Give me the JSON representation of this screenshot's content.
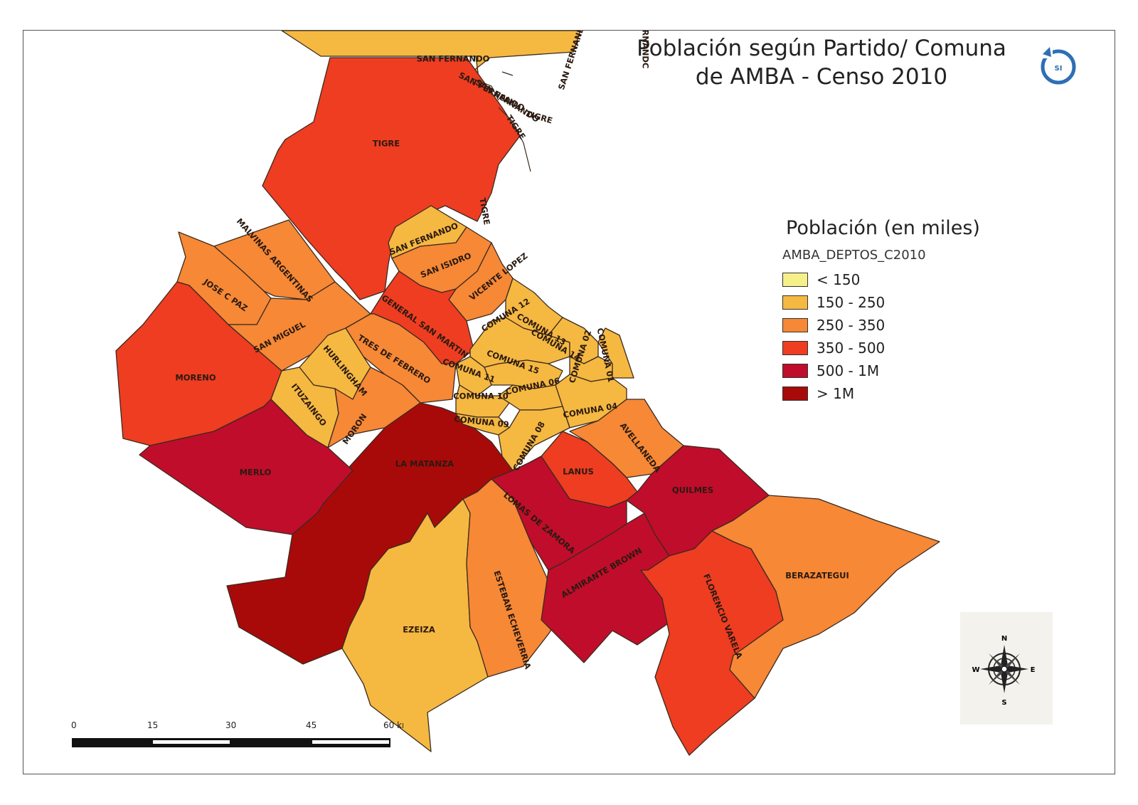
{
  "title": {
    "line1": "Población según Partido/ Comuna",
    "line2": "de AMBA - Censo 2010"
  },
  "legend": {
    "title": "Población (en miles)",
    "layer": "AMBA_DEPTOS_C2010",
    "classes": [
      {
        "label": "< 150",
        "color": "#f5f08a"
      },
      {
        "label": "150 - 250",
        "color": "#f5b841"
      },
      {
        "label": "250 - 350",
        "color": "#f68836"
      },
      {
        "label": "350 - 500",
        "color": "#ee3d21"
      },
      {
        "label": "500 - 1M",
        "color": "#c00d2b"
      },
      {
        "label": "> 1M",
        "color": "#a80a0a"
      }
    ]
  },
  "regions": [
    {
      "name": "SAN FERNANDO",
      "class": 1
    },
    {
      "name": "TIGRE",
      "class": 3
    },
    {
      "name": "MALVINAS ARGENTINAS",
      "class": 2
    },
    {
      "name": "JOSE C PAZ",
      "class": 2
    },
    {
      "name": "SAN MIGUEL",
      "class": 2
    },
    {
      "name": "MORENO",
      "class": 3
    },
    {
      "name": "SAN FERNANDO",
      "class": 1
    },
    {
      "name": "SAN ISIDRO",
      "class": 2
    },
    {
      "name": "VICENTE LOPEZ",
      "class": 2
    },
    {
      "name": "GENERAL SAN MARTIN",
      "class": 3
    },
    {
      "name": "TRES DE FEBRERO",
      "class": 2
    },
    {
      "name": "HURLINGHAM",
      "class": 1
    },
    {
      "name": "ITUZAINGO",
      "class": 1
    },
    {
      "name": "MORON",
      "class": 2
    },
    {
      "name": "MERLO",
      "class": 4
    },
    {
      "name": "LA MATANZA",
      "class": 5
    },
    {
      "name": "EZEIZA",
      "class": 1
    },
    {
      "name": "ESTEBAN ECHEVERRIA",
      "class": 2
    },
    {
      "name": "LOMAS DE ZAMORA",
      "class": 4
    },
    {
      "name": "ALMIRANTE BROWN",
      "class": 4
    },
    {
      "name": "LANUS",
      "class": 3
    },
    {
      "name": "AVELLANEDA",
      "class": 2
    },
    {
      "name": "QUILMES",
      "class": 4
    },
    {
      "name": "FLORENCIO VARELA",
      "class": 3
    },
    {
      "name": "BERAZATEGUI",
      "class": 2
    },
    {
      "name": "COMUNA 12",
      "class": 1
    },
    {
      "name": "COMUNA 13",
      "class": 1
    },
    {
      "name": "COMUNA 14",
      "class": 1
    },
    {
      "name": "COMUNA 02",
      "class": 1
    },
    {
      "name": "COMUNA 01",
      "class": 1
    },
    {
      "name": "COMUNA 15",
      "class": 1
    },
    {
      "name": "COMUNA 11",
      "class": 1
    },
    {
      "name": "COMUNA 10",
      "class": 1
    },
    {
      "name": "COMUNA 06",
      "class": 1
    },
    {
      "name": "COMUNA 09",
      "class": 1
    },
    {
      "name": "COMUNA 04",
      "class": 1
    },
    {
      "name": "COMUNA 08",
      "class": 1
    }
  ],
  "extra_labels": [
    "SAN FERNANDO",
    "TIGRE",
    "TIGRE",
    "TIGRE",
    "SAN FERNANDO",
    "SAN FERNANDO",
    "FERNANDC"
  ],
  "scale": {
    "ticks": [
      "0",
      "15",
      "30",
      "45",
      "60 km"
    ]
  },
  "compass": {
    "n": "N",
    "s": "S",
    "e": "E",
    "w": "W"
  },
  "logo": {
    "text": "SI",
    "color": "#2e6fb5"
  }
}
